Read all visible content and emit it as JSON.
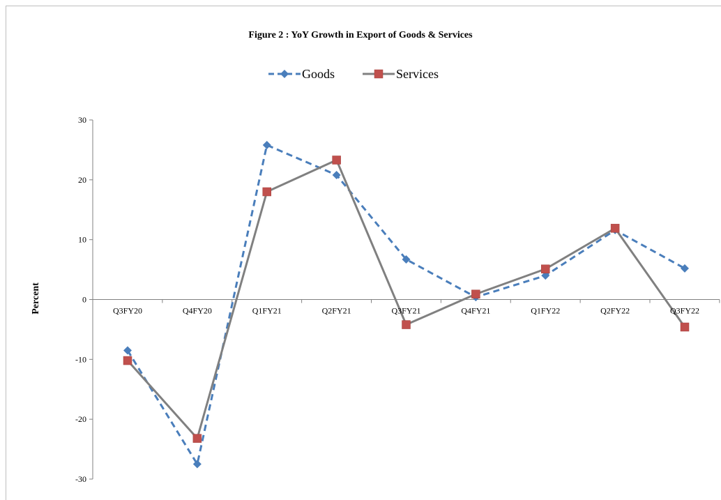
{
  "chart_data": {
    "type": "line",
    "title": "Figure 2 : YoY Growth in Export  of Goods & Services",
    "xlabel": "",
    "ylabel": "Percent",
    "categories": [
      "Q3FY20",
      "Q4FY20",
      "Q1FY21",
      "Q2FY21",
      "Q3FY21",
      "Q4FY21",
      "Q1FY22",
      "Q2FY22",
      "Q3FY22"
    ],
    "ylim": [
      -30,
      30
    ],
    "yticks": [
      30,
      20,
      10,
      0,
      -10,
      -20,
      -30
    ],
    "grid": false,
    "legend_position": "top",
    "series": [
      {
        "name": "Goods",
        "values": [
          -8.5,
          -27.5,
          25.8,
          20.8,
          6.7,
          0.4,
          4.0,
          11.6,
          5.2
        ],
        "color": "#4a7ebb",
        "marker": "diamond",
        "line_style": "dashed"
      },
      {
        "name": "Services",
        "values": [
          -10.2,
          -23.2,
          18.0,
          23.3,
          -4.2,
          0.9,
          5.1,
          11.9,
          -4.6
        ],
        "color": "#808080",
        "marker_color": "#c0504d",
        "marker": "square",
        "line_style": "solid"
      }
    ]
  }
}
